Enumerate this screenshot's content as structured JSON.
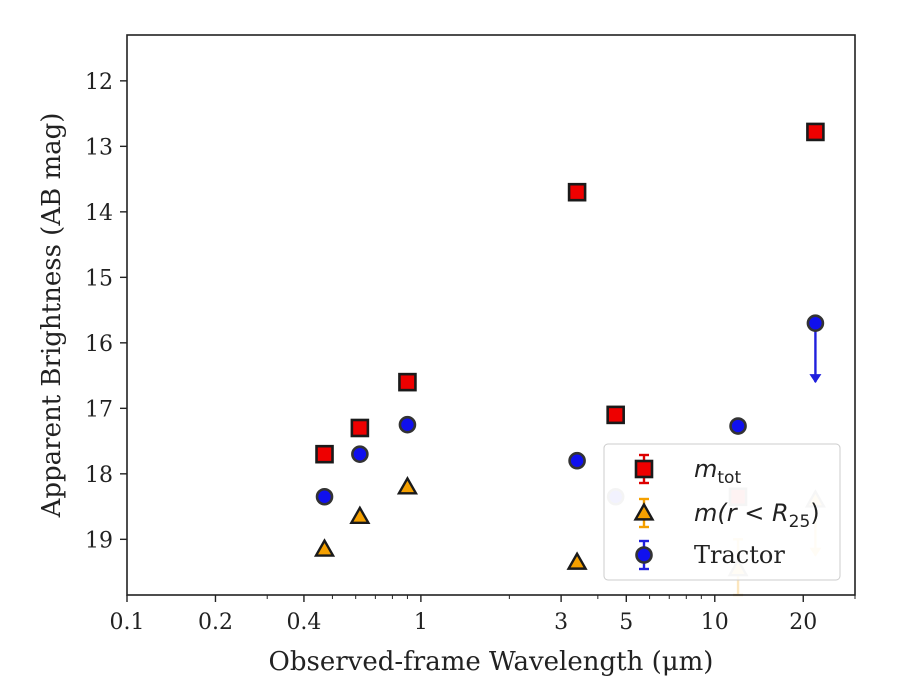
{
  "chart_data": {
    "type": "scatter",
    "title": "",
    "xlabel": "Observed-frame Wavelength (μm)",
    "ylabel": "Apparent Brightness (AB mag)",
    "xscale": "log",
    "xlim": [
      0.1,
      30
    ],
    "ylim": [
      19.85,
      11.3
    ],
    "y_inverted": true,
    "x_ticks": [
      {
        "value": 0.1,
        "label": "0.1"
      },
      {
        "value": 0.2,
        "label": "0.2"
      },
      {
        "value": 0.4,
        "label": "0.4"
      },
      {
        "value": 1,
        "label": "1"
      },
      {
        "value": 3,
        "label": "3"
      },
      {
        "value": 5,
        "label": "5"
      },
      {
        "value": 10,
        "label": "10"
      },
      {
        "value": 20,
        "label": "20"
      }
    ],
    "x_minor_ticks": [
      0.3,
      0.5,
      0.6,
      0.7,
      0.8,
      0.9,
      2,
      4,
      6,
      7,
      8,
      9,
      30
    ],
    "y_ticks": [
      12,
      13,
      14,
      15,
      16,
      17,
      18,
      19
    ],
    "grid": false,
    "legend": {
      "placement": "lower-right",
      "entries": [
        {
          "series": "m_tot",
          "label_main": "m",
          "label_sub": "tot",
          "label_suffix": ""
        },
        {
          "series": "m_r25",
          "label_main": "m(r < R",
          "label_sub": "25",
          "label_suffix": ")"
        },
        {
          "series": "tractor",
          "label_main": "Tractor",
          "label_sub": "",
          "label_suffix": ""
        }
      ]
    },
    "series": [
      {
        "key": "m_tot",
        "marker": "square",
        "color": "#ee0000",
        "edge": "#1a1a1a",
        "errcolor": "#dd0000",
        "points": [
          {
            "x": 0.47,
            "y": 17.7,
            "alpha": 1
          },
          {
            "x": 0.62,
            "y": 17.3,
            "alpha": 1
          },
          {
            "x": 0.9,
            "y": 16.6,
            "alpha": 1
          },
          {
            "x": 3.4,
            "y": 13.7,
            "alpha": 1
          },
          {
            "x": 4.6,
            "y": 17.1,
            "alpha": 1
          },
          {
            "x": 12.0,
            "y": 18.35,
            "alpha": 0.3
          },
          {
            "x": 22.0,
            "y": 12.78,
            "alpha": 1
          }
        ]
      },
      {
        "key": "m_r25",
        "marker": "triangle",
        "color": "#f5a000",
        "edge": "#1a1a1a",
        "errcolor": "#f5a000",
        "points": [
          {
            "x": 0.47,
            "y": 19.15,
            "alpha": 1
          },
          {
            "x": 0.62,
            "y": 18.65,
            "alpha": 1
          },
          {
            "x": 0.9,
            "y": 18.2,
            "alpha": 1
          },
          {
            "x": 3.4,
            "y": 19.35,
            "alpha": 1
          },
          {
            "x": 12.0,
            "y": 19.45,
            "alpha": 0.25,
            "err": [
              0.45,
              0.4
            ]
          },
          {
            "x": 22.0,
            "y": 18.4,
            "alpha": 0.25,
            "upper_limit_to": 19.25
          }
        ]
      },
      {
        "key": "tractor",
        "marker": "circle",
        "color": "#1010ee",
        "edge": "#333333",
        "errcolor": "#2020dd",
        "points": [
          {
            "x": 0.47,
            "y": 18.35,
            "alpha": 1
          },
          {
            "x": 0.62,
            "y": 17.7,
            "alpha": 1
          },
          {
            "x": 0.9,
            "y": 17.25,
            "alpha": 1
          },
          {
            "x": 3.4,
            "y": 17.8,
            "alpha": 1
          },
          {
            "x": 4.6,
            "y": 18.35,
            "alpha": 0.35
          },
          {
            "x": 12.0,
            "y": 17.27,
            "alpha": 1
          },
          {
            "x": 22.0,
            "y": 15.7,
            "alpha": 1,
            "upper_limit_to": 16.6
          }
        ]
      }
    ]
  }
}
